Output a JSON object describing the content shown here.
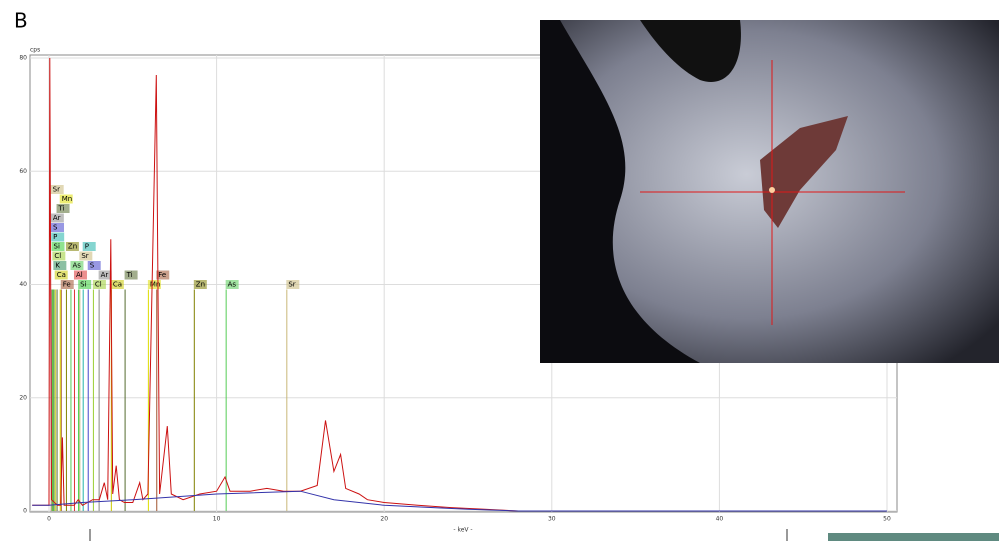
{
  "chart_data": {
    "type": "line",
    "panel": "B",
    "ylabel": "cps",
    "xlabel": "- keV -",
    "xlim": [
      0,
      50
    ],
    "xticks": [
      0,
      10,
      20,
      30,
      40,
      50
    ],
    "ylim": [
      0,
      80
    ],
    "yticks": [
      0,
      20,
      40,
      60,
      80
    ],
    "grid": true,
    "series": [
      {
        "color": "#cc1111",
        "x": [
          -1,
          0,
          0.05,
          0.15,
          0.5,
          0.7,
          0.8,
          0.9,
          1.5,
          1.74,
          2,
          2.3,
          2.6,
          3,
          3.3,
          3.5,
          3.69,
          3.8,
          4.01,
          4.2,
          4.5,
          5,
          5.41,
          5.6,
          5.9,
          6.4,
          6.6,
          7.06,
          7.3,
          8,
          9,
          10,
          10.5,
          10.8,
          12,
          13,
          14,
          15,
          16,
          16.5,
          17,
          17.4,
          17.7,
          18.5,
          19,
          20,
          22,
          24,
          26,
          28,
          30,
          50
        ],
        "values": [
          1,
          1,
          80,
          2,
          1,
          1,
          13,
          1,
          1,
          2,
          1,
          1.5,
          2,
          2,
          5,
          2,
          48,
          3,
          8,
          2,
          1.5,
          1.5,
          5,
          2,
          3,
          77,
          3,
          15,
          3,
          2,
          3,
          3.5,
          6,
          3.5,
          3.5,
          4,
          3.5,
          3.5,
          4.5,
          16,
          7,
          10,
          4,
          3,
          2,
          1.5,
          1,
          0.6,
          0.3,
          0,
          0,
          0
        ]
      },
      {
        "color": "#3333aa",
        "x": [
          -1,
          0,
          2,
          5,
          10,
          15,
          17,
          20,
          25,
          28,
          50
        ],
        "values": [
          1,
          1,
          1.5,
          2,
          3,
          3.5,
          2,
          1,
          0.3,
          0,
          0
        ]
      }
    ],
    "elements": [
      {
        "label": "Fe",
        "x": 0.7,
        "color": "#a0522d"
      },
      {
        "label": "Ca",
        "x": 0.34,
        "color": "#c8c800"
      },
      {
        "label": "K",
        "x": 0.26,
        "color": "#2e8b57"
      },
      {
        "label": "Cl",
        "x": 0.2,
        "color": "#9acd32"
      },
      {
        "label": "Si",
        "x": 0.15,
        "color": "#33cc33"
      },
      {
        "label": "P",
        "x": 0.13,
        "color": "#20b2aa"
      },
      {
        "label": "S",
        "x": 0.12,
        "color": "#4444cc"
      },
      {
        "label": "Ar",
        "x": 0.11,
        "color": "#888888"
      },
      {
        "label": "Ti",
        "x": 0.45,
        "color": "#556b2f"
      },
      {
        "label": "Mn",
        "x": 0.64,
        "color": "#dddd00"
      },
      {
        "label": "Sr",
        "x": 0.1,
        "color": "#c8b878"
      },
      {
        "label": "Si",
        "x": 1.74,
        "color": "#33cc33"
      },
      {
        "label": "Al",
        "x": 1.49,
        "color": "#dd3333"
      },
      {
        "label": "Zn",
        "x": 1.01,
        "color": "#808000"
      },
      {
        "label": "As",
        "x": 1.28,
        "color": "#55cc55"
      },
      {
        "label": "Sr",
        "x": 1.81,
        "color": "#c8b878"
      },
      {
        "label": "P",
        "x": 2.01,
        "color": "#20b2aa"
      },
      {
        "label": "S",
        "x": 2.31,
        "color": "#4444cc"
      },
      {
        "label": "Cl",
        "x": 2.62,
        "color": "#9acd32"
      },
      {
        "label": "Ar",
        "x": 2.96,
        "color": "#888888"
      },
      {
        "label": "Ca",
        "x": 3.69,
        "color": "#c8c800"
      },
      {
        "label": "Ti",
        "x": 4.51,
        "color": "#556b2f"
      },
      {
        "label": "Mn",
        "x": 5.9,
        "color": "#dddd00"
      },
      {
        "label": "Fe",
        "x": 6.4,
        "color": "#a0522d"
      },
      {
        "label": "Zn",
        "x": 8.64,
        "color": "#808000"
      },
      {
        "label": "As",
        "x": 10.54,
        "color": "#55cc55"
      },
      {
        "label": "Sr",
        "x": 14.16,
        "color": "#c8b878"
      }
    ]
  }
}
